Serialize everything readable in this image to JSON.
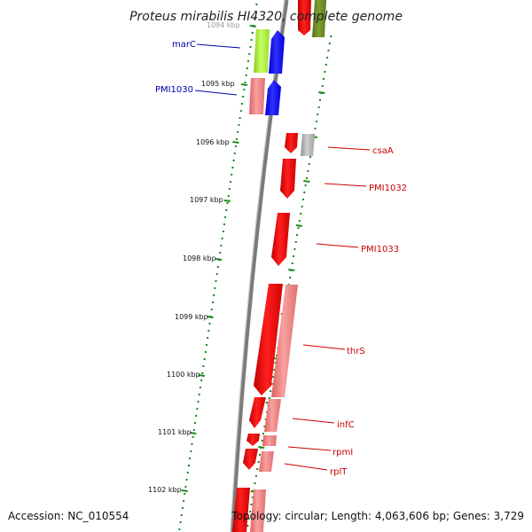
{
  "title": "Proteus mirabilis HI4320, complete genome",
  "footer": {
    "accession": "Accession: NC_010554",
    "topology": "Topology: circular; Length: 4,063,606 bp; Genes: 3,729"
  },
  "ticks": [
    "1094 kbp",
    "1095 kbp",
    "1096 kbp",
    "1097 kbp",
    "1098 kbp",
    "1099 kbp",
    "1100 kbp",
    "1101 kbp",
    "1102 kbp"
  ],
  "genes": [
    {
      "name": "marC",
      "color": "#0000aa"
    },
    {
      "name": "PMI1030",
      "color": "#0000aa"
    },
    {
      "name": "csaA",
      "color": "#cc0000"
    },
    {
      "name": "PMI1032",
      "color": "#cc0000"
    },
    {
      "name": "PMI1033",
      "color": "#cc0000"
    },
    {
      "name": "thrS",
      "color": "#cc0000"
    },
    {
      "name": "infC",
      "color": "#cc0000"
    },
    {
      "name": "rpmI",
      "color": "#cc0000"
    },
    {
      "name": "rplT",
      "color": "#cc0000"
    }
  ],
  "colors": {
    "forward_cds": "#ff0000",
    "forward_cds_light": "#f08080",
    "reverse_cds": "#0000ff",
    "hypothetical": "#99dd33",
    "rna": "#b0b0b0",
    "gc_olive": "#6b8e23",
    "dots": "#1a8a1a",
    "backbone": "#888888"
  }
}
